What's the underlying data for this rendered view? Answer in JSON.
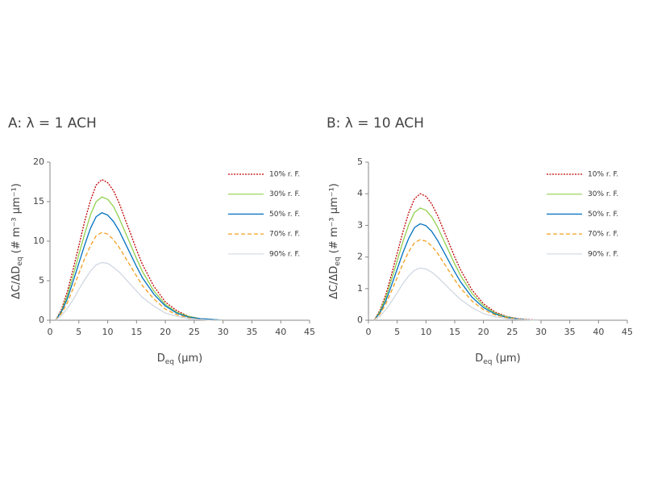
{
  "chart_data": [
    {
      "type": "line",
      "title": "A: λ = 1 ACH",
      "xlabel": {
        "text": "D",
        "sub": "eq",
        "rest": " (µm)"
      },
      "ylabel": {
        "text": "ΔC/ΔD",
        "sub": "eq",
        "rest": " (# m⁻³ µm⁻¹)"
      },
      "x": [
        1,
        2,
        3,
        4,
        5,
        6,
        7,
        8,
        9,
        10,
        11,
        12,
        13,
        14,
        15,
        16,
        18,
        20,
        22,
        24,
        26,
        28,
        30
      ],
      "xlim": [
        0,
        45
      ],
      "xticks": [
        0,
        5,
        10,
        15,
        20,
        25,
        30,
        35,
        40,
        45
      ],
      "ylim": [
        0,
        20
      ],
      "yticks": [
        0,
        5,
        10,
        15,
        20
      ],
      "series": [
        {
          "name": "10% r. F.",
          "color": "#c00000",
          "dash": "2,1.5",
          "values": [
            0,
            1.4,
            3.6,
            6.4,
            9.4,
            12.5,
            15.1,
            17.1,
            17.8,
            17.4,
            16.4,
            14.8,
            12.8,
            10.9,
            8.9,
            7.1,
            4.3,
            2.3,
            1.2,
            0.5,
            0.2,
            0.1,
            0
          ]
        },
        {
          "name": "30% r. F.",
          "color": "#92d050",
          "dash": "none",
          "values": [
            0,
            1.2,
            3.1,
            5.6,
            8.3,
            10.9,
            13.3,
            15.0,
            15.6,
            15.3,
            14.4,
            12.9,
            11.2,
            9.5,
            7.8,
            6.2,
            3.7,
            2.0,
            1.0,
            0.5,
            0.2,
            0.1,
            0
          ]
        },
        {
          "name": "50% r. F.",
          "color": "#0070c0",
          "dash": "none",
          "values": [
            0,
            1.1,
            2.7,
            4.9,
            7.2,
            9.5,
            11.6,
            13.1,
            13.6,
            13.3,
            12.5,
            11.3,
            9.8,
            8.3,
            6.8,
            5.4,
            3.3,
            1.8,
            0.9,
            0.4,
            0.2,
            0.1,
            0
          ]
        },
        {
          "name": "70% r. F.",
          "color": "#f4a020",
          "dash": "5,3",
          "values": [
            0,
            0.9,
            2.2,
            4.0,
            5.9,
            7.8,
            9.4,
            10.7,
            11.1,
            10.9,
            10.2,
            9.2,
            8.0,
            6.8,
            5.6,
            4.4,
            2.7,
            1.4,
            0.7,
            0.3,
            0.1,
            0,
            0
          ]
        },
        {
          "name": "90% r. F.",
          "color": "#d0d8e2",
          "dash": "none",
          "values": [
            0,
            0.6,
            1.5,
            2.6,
            3.9,
            5.1,
            6.2,
            7.0,
            7.3,
            7.2,
            6.7,
            6.1,
            5.3,
            4.5,
            3.7,
            2.9,
            1.8,
            0.9,
            0.5,
            0.2,
            0.1,
            0,
            0
          ]
        }
      ]
    },
    {
      "type": "line",
      "title": "B: λ = 10 ACH",
      "xlabel": {
        "text": "D",
        "sub": "eq",
        "rest": " (µm)"
      },
      "ylabel": {
        "text": "ΔC/ΔD",
        "sub": "eq",
        "rest": " (# m⁻³ µm⁻¹)"
      },
      "x": [
        1,
        2,
        3,
        4,
        5,
        6,
        7,
        8,
        9,
        10,
        11,
        12,
        13,
        14,
        15,
        16,
        18,
        20,
        22,
        24,
        26,
        28,
        30
      ],
      "xlim": [
        0,
        45
      ],
      "xticks": [
        0,
        5,
        10,
        15,
        20,
        25,
        30,
        35,
        40,
        45
      ],
      "ylim": [
        0,
        5
      ],
      "yticks": [
        0,
        1,
        2,
        3,
        4,
        5
      ],
      "series": [
        {
          "name": "10% r. F.",
          "color": "#c00000",
          "dash": "2,1.5",
          "values": [
            0,
            0.32,
            0.8,
            1.44,
            2.12,
            2.8,
            3.4,
            3.84,
            4.0,
            3.92,
            3.68,
            3.32,
            2.88,
            2.44,
            2.0,
            1.6,
            0.96,
            0.52,
            0.26,
            0.12,
            0.05,
            0.02,
            0
          ]
        },
        {
          "name": "30% r. F.",
          "color": "#92d050",
          "dash": "none",
          "values": [
            0,
            0.28,
            0.71,
            1.28,
            1.88,
            2.49,
            3.02,
            3.41,
            3.55,
            3.48,
            3.27,
            2.95,
            2.56,
            2.17,
            1.78,
            1.42,
            0.85,
            0.46,
            0.23,
            0.11,
            0.04,
            0.01,
            0
          ]
        },
        {
          "name": "50% r. F.",
          "color": "#0070c0",
          "dash": "none",
          "values": [
            0,
            0.24,
            0.61,
            1.1,
            1.62,
            2.14,
            2.59,
            2.93,
            3.05,
            2.99,
            2.81,
            2.53,
            2.2,
            1.86,
            1.53,
            1.22,
            0.73,
            0.4,
            0.2,
            0.09,
            0.04,
            0.01,
            0
          ]
        },
        {
          "name": "70% r. F.",
          "color": "#f4a020",
          "dash": "5,3",
          "values": [
            0,
            0.2,
            0.51,
            0.92,
            1.35,
            1.79,
            2.17,
            2.45,
            2.55,
            2.5,
            2.35,
            2.12,
            1.84,
            1.56,
            1.28,
            1.02,
            0.61,
            0.33,
            0.17,
            0.08,
            0.03,
            0.01,
            0
          ]
        },
        {
          "name": "90% r. F.",
          "color": "#d0d8e2",
          "dash": "none",
          "values": [
            0,
            0.13,
            0.33,
            0.59,
            0.87,
            1.16,
            1.4,
            1.58,
            1.65,
            1.62,
            1.52,
            1.37,
            1.19,
            1.01,
            0.83,
            0.66,
            0.4,
            0.21,
            0.11,
            0.05,
            0.02,
            0.01,
            0
          ]
        }
      ]
    }
  ]
}
